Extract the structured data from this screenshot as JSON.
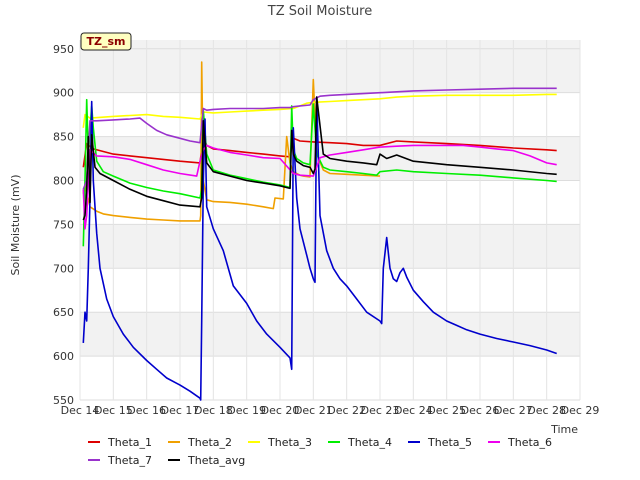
{
  "chart_data": {
    "type": "line",
    "title": "TZ Soil Moisture",
    "badge": "TZ_sm",
    "xlabel": "Time",
    "ylabel": "Soil Moisture (mV)",
    "xlim": [
      14,
      29
    ],
    "ylim": [
      550,
      960
    ],
    "x_ticks": [
      14,
      15,
      16,
      17,
      18,
      19,
      20,
      21,
      22,
      23,
      24,
      25,
      26,
      27,
      28,
      29
    ],
    "x_tick_labels": [
      "Dec 14",
      "Dec 15",
      "Dec 16",
      "Dec 17",
      "Dec 18",
      "Dec 19",
      "Dec 20",
      "Dec 21",
      "Dec 22",
      "Dec 23",
      "Dec 24",
      "Dec 25",
      "Dec 26",
      "Dec 27",
      "Dec 28",
      "Dec 29"
    ],
    "y_ticks": [
      550,
      600,
      650,
      700,
      750,
      800,
      850,
      900,
      950
    ],
    "grid": true,
    "legend_position": "bottom",
    "series": [
      {
        "name": "Theta_1",
        "color": "#dd0000",
        "x": [
          14.1,
          14.2,
          14.4,
          14.7,
          15.0,
          15.5,
          16.0,
          16.5,
          17.0,
          17.6,
          17.7,
          17.8,
          18.0,
          18.5,
          19.0,
          19.5,
          20.0,
          20.3,
          20.4,
          20.6,
          21.0,
          21.5,
          22.0,
          22.5,
          23.0,
          23.5,
          24.0,
          25.0,
          26.0,
          27.0,
          28.0,
          28.3
        ],
        "y": [
          815,
          842,
          836,
          833,
          830,
          828,
          826,
          824,
          822,
          820,
          850,
          840,
          836,
          834,
          832,
          830,
          828,
          827,
          848,
          845,
          844,
          843,
          842,
          840,
          840,
          845,
          844,
          842,
          840,
          837,
          835,
          834
        ]
      },
      {
        "name": "Theta_2",
        "color": "#f0a000",
        "x": [
          14.1,
          14.15,
          14.3,
          14.5,
          14.7,
          15.0,
          15.5,
          16.0,
          16.5,
          17.0,
          17.6,
          17.62,
          17.65,
          17.7,
          17.8,
          18.0,
          18.5,
          19.0,
          19.5,
          19.8,
          19.85,
          20.1,
          20.2,
          20.3,
          20.4,
          20.6,
          20.7,
          20.9,
          21.0,
          21.1,
          21.3,
          21.5,
          22.0,
          22.5,
          23.0
        ],
        "y": [
          785,
          795,
          770,
          765,
          762,
          760,
          758,
          756,
          755,
          754,
          754,
          760,
          935,
          800,
          778,
          776,
          775,
          773,
          770,
          768,
          780,
          779,
          850,
          820,
          810,
          806,
          805,
          804,
          915,
          830,
          812,
          808,
          807,
          806,
          805
        ]
      },
      {
        "name": "Theta_3",
        "color": "#ffff00",
        "x": [
          14.1,
          14.15,
          14.3,
          15.0,
          15.5,
          16.0,
          16.5,
          17.0,
          17.6,
          17.7,
          18.0,
          18.5,
          19.0,
          19.5,
          20.0,
          20.4,
          20.8,
          21.0,
          21.5,
          22.0,
          22.5,
          23.0,
          23.5,
          24.0,
          25.0,
          26.0,
          27.0,
          28.0,
          28.3
        ],
        "y": [
          860,
          875,
          871,
          873,
          874,
          875,
          873,
          872,
          870,
          878,
          877,
          878,
          879,
          880,
          881,
          882,
          888,
          889,
          890,
          891,
          892,
          893,
          895,
          896,
          897,
          897,
          897,
          898,
          898
        ]
      },
      {
        "name": "Theta_4",
        "color": "#00ee00",
        "x": [
          14.1,
          14.15,
          14.2,
          14.25,
          14.35,
          14.4,
          14.5,
          14.7,
          15.0,
          15.5,
          16.0,
          16.5,
          17.0,
          17.6,
          17.65,
          17.7,
          17.8,
          18.0,
          18.5,
          19.0,
          19.5,
          20.0,
          20.3,
          20.35,
          20.4,
          20.5,
          20.7,
          20.9,
          21.0,
          21.1,
          21.3,
          21.5,
          22.0,
          22.5,
          22.9,
          23.0,
          23.5,
          24.0,
          25.0,
          26.0,
          27.0,
          28.0,
          28.3
        ],
        "y": [
          725,
          800,
          892,
          830,
          885,
          860,
          822,
          810,
          805,
          797,
          792,
          788,
          785,
          780,
          790,
          880,
          830,
          812,
          806,
          802,
          798,
          795,
          792,
          885,
          835,
          825,
          820,
          818,
          887,
          830,
          815,
          812,
          810,
          808,
          806,
          810,
          812,
          810,
          808,
          806,
          803,
          800,
          799
        ]
      },
      {
        "name": "Theta_5",
        "color": "#0000cc",
        "x": [
          14.1,
          14.15,
          14.2,
          14.25,
          14.3,
          14.35,
          14.4,
          14.5,
          14.6,
          14.8,
          15.0,
          15.3,
          15.6,
          16.0,
          16.3,
          16.6,
          17.0,
          17.3,
          17.6,
          17.62,
          17.65,
          17.7,
          17.75,
          17.8,
          18.0,
          18.3,
          18.6,
          19.0,
          19.3,
          19.6,
          20.0,
          20.3,
          20.35,
          20.4,
          20.5,
          20.6,
          20.8,
          20.9,
          21.0,
          21.05,
          21.1,
          21.2,
          21.4,
          21.6,
          21.8,
          22.0,
          22.3,
          22.6,
          23.0,
          23.05,
          23.1,
          23.2,
          23.3,
          23.4,
          23.5,
          23.6,
          23.7,
          23.8,
          24.0,
          24.3,
          24.6,
          25.0,
          25.3,
          25.6,
          26.0,
          26.5,
          27.0,
          27.5,
          28.0,
          28.3
        ],
        "y": [
          615,
          650,
          640,
          700,
          780,
          890,
          800,
          740,
          700,
          665,
          645,
          625,
          610,
          595,
          585,
          575,
          567,
          560,
          552,
          550,
          640,
          800,
          870,
          770,
          745,
          720,
          680,
          660,
          640,
          625,
          610,
          598,
          585,
          860,
          780,
          745,
          715,
          700,
          688,
          684,
          895,
          760,
          720,
          700,
          688,
          680,
          665,
          650,
          640,
          637,
          700,
          735,
          700,
          688,
          685,
          695,
          700,
          690,
          675,
          662,
          650,
          640,
          635,
          630,
          625,
          620,
          616,
          612,
          607,
          603
        ]
      },
      {
        "name": "Theta_6",
        "color": "#ee00ee",
        "x": [
          14.1,
          14.15,
          14.2,
          14.3,
          14.5,
          15.0,
          15.5,
          16.0,
          16.5,
          17.0,
          17.5,
          17.6,
          17.7,
          17.8,
          18.0,
          18.5,
          19.0,
          19.5,
          20.0,
          20.4,
          20.6,
          21.0,
          21.2,
          21.5,
          22.0,
          22.5,
          23.0,
          23.5,
          24.0,
          25.0,
          25.5,
          26.0,
          26.5,
          27.0,
          27.5,
          28.0,
          28.3
        ],
        "y": [
          790,
          745,
          760,
          835,
          828,
          827,
          824,
          818,
          812,
          808,
          805,
          822,
          835,
          840,
          837,
          832,
          829,
          826,
          825,
          808,
          806,
          805,
          826,
          829,
          832,
          835,
          838,
          839,
          840,
          840,
          840,
          838,
          836,
          834,
          828,
          820,
          818
        ]
      },
      {
        "name": "Theta_7",
        "color": "#9933cc",
        "x": [
          14.1,
          14.2,
          14.3,
          14.5,
          15.0,
          15.5,
          15.8,
          16.0,
          16.3,
          16.6,
          17.0,
          17.3,
          17.6,
          17.7,
          17.8,
          18.0,
          18.5,
          19.0,
          19.5,
          20.0,
          20.3,
          20.4,
          20.6,
          20.9,
          21.0,
          21.2,
          21.5,
          22.0,
          22.5,
          23.0,
          23.5,
          24.0,
          25.0,
          26.0,
          27.0,
          28.0,
          28.3
        ],
        "y": [
          790,
          800,
          868,
          868,
          869,
          870,
          871,
          865,
          857,
          852,
          848,
          845,
          843,
          882,
          880,
          881,
          882,
          882,
          882,
          883,
          883,
          884,
          885,
          886,
          892,
          896,
          897,
          898,
          899,
          900,
          901,
          902,
          903,
          904,
          905,
          905,
          905
        ]
      },
      {
        "name": "Theta_avg",
        "color": "#000000",
        "x": [
          14.1,
          14.15,
          14.2,
          14.25,
          14.3,
          14.35,
          14.45,
          14.6,
          15.0,
          15.5,
          16.0,
          16.5,
          17.0,
          17.6,
          17.65,
          17.7,
          17.8,
          18.0,
          18.5,
          19.0,
          19.5,
          20.0,
          20.3,
          20.35,
          20.4,
          20.5,
          20.7,
          20.9,
          21.0,
          21.05,
          21.1,
          21.3,
          21.5,
          22.0,
          22.5,
          22.9,
          23.0,
          23.2,
          23.5,
          24.0,
          25.0,
          26.0,
          27.0,
          28.0,
          28.3
        ],
        "y": [
          755,
          760,
          790,
          850,
          775,
          852,
          815,
          808,
          800,
          790,
          782,
          777,
          772,
          770,
          780,
          868,
          820,
          810,
          805,
          800,
          797,
          794,
          791,
          857,
          830,
          822,
          817,
          815,
          808,
          813,
          895,
          830,
          825,
          822,
          820,
          818,
          830,
          825,
          829,
          822,
          818,
          815,
          812,
          808,
          807
        ]
      }
    ]
  }
}
